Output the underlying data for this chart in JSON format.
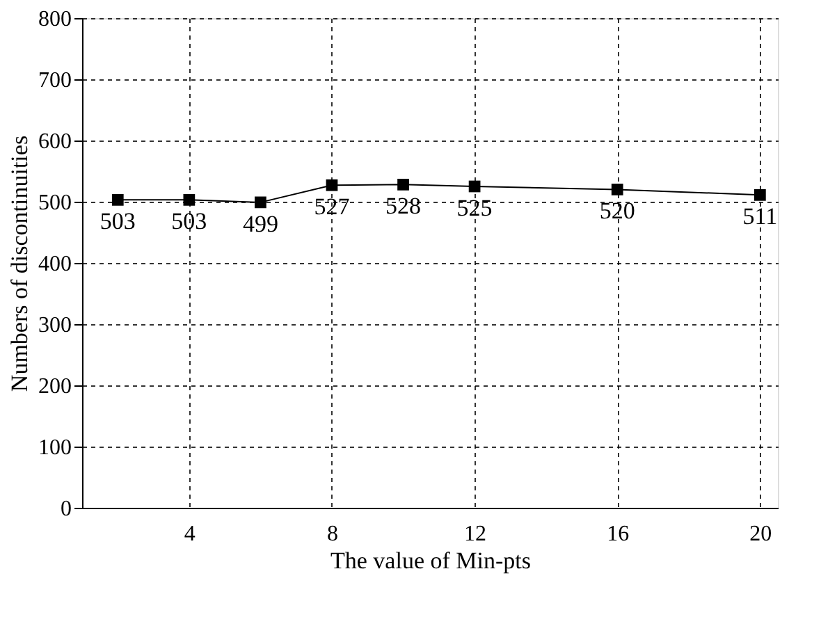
{
  "chart_data": {
    "type": "line",
    "xlabel": "The value of Min-pts",
    "ylabel": "Numbers of discontinuities",
    "x": [
      2,
      4,
      6,
      8,
      10,
      12,
      16,
      20
    ],
    "series": [
      {
        "color": "#000000",
        "values": [
          503,
          503,
          499,
          527,
          528,
          525,
          520,
          511
        ]
      }
    ],
    "xlim": [
      1,
      20.5
    ],
    "xticks": [
      4,
      8,
      12,
      16,
      20
    ],
    "ylim": [
      0,
      800
    ],
    "yticks": [
      0,
      100,
      200,
      300,
      400,
      500,
      600,
      700,
      800
    ],
    "grid": true,
    "marker": "square",
    "line_style": "solid",
    "data_labels": true
  }
}
